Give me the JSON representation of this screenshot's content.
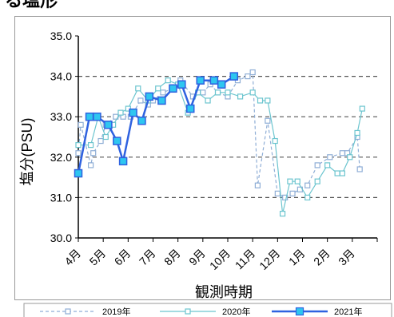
{
  "page_title_fragment": "る塩形",
  "chart_data": {
    "type": "line",
    "title": "",
    "xlabel": "観測時期",
    "ylabel": "塩分(PSU)",
    "ylim": [
      30.0,
      35.0
    ],
    "yticks": [
      "30.0",
      "31.0",
      "32.0",
      "33.0",
      "34.0",
      "35.0"
    ],
    "ytick_values": [
      30.0,
      31.0,
      32.0,
      33.0,
      34.0,
      35.0
    ],
    "dashed_gridlines": [
      31.0,
      32.0,
      33.0,
      34.0
    ],
    "xlim": [
      4,
      16
    ],
    "categories": [
      "4月",
      "5月",
      "6月",
      "7月",
      "8月",
      "9月",
      "10月",
      "11月",
      "12月",
      "1月",
      "2月",
      "3月"
    ],
    "category_positions": [
      4,
      5,
      6,
      7,
      8,
      9,
      10,
      11,
      12,
      13,
      14,
      15
    ],
    "legend_position": "bottom",
    "series": [
      {
        "name": "2019年",
        "color": "#8faed6",
        "style": "dashed",
        "marker": "square-hollow",
        "x": [
          4.0,
          4.1,
          4.5,
          4.6,
          4.9,
          5.1,
          5.5,
          5.8,
          6.1,
          6.5,
          6.8,
          7.0,
          7.4,
          7.8,
          8.1,
          8.6,
          9.0,
          9.3,
          9.6,
          10.0,
          10.4,
          10.8,
          11.0,
          11.2,
          11.6,
          12.0,
          12.3,
          12.6,
          12.9,
          13.2,
          13.6,
          14.1,
          14.6,
          14.8,
          15.2,
          15.3
        ],
        "y": [
          32.1,
          32.8,
          31.8,
          32.1,
          32.4,
          32.8,
          33.0,
          33.0,
          33.0,
          33.4,
          33.3,
          33.4,
          33.6,
          33.7,
          33.9,
          33.5,
          33.6,
          33.8,
          33.6,
          33.5,
          33.9,
          34.0,
          34.1,
          31.3,
          32.9,
          31.1,
          31.0,
          31.1,
          31.2,
          31.3,
          31.8,
          32.0,
          32.1,
          32.1,
          32.5,
          31.7
        ]
      },
      {
        "name": "2020年",
        "color": "#6cc5cf",
        "style": "solid",
        "marker": "square-hollow",
        "x": [
          4.0,
          4.5,
          4.8,
          5.1,
          5.4,
          5.7,
          6.0,
          6.4,
          6.8,
          7.2,
          7.6,
          8.0,
          8.4,
          8.8,
          9.2,
          9.6,
          10.0,
          10.5,
          11.0,
          11.3,
          11.6,
          11.9,
          12.2,
          12.5,
          12.8,
          13.2,
          13.6,
          14.0,
          14.4,
          14.6,
          14.9,
          15.2,
          15.4
        ],
        "y": [
          32.3,
          32.3,
          33.0,
          32.5,
          32.8,
          33.1,
          33.2,
          33.7,
          33.4,
          33.7,
          33.9,
          33.8,
          33.1,
          33.6,
          33.4,
          33.6,
          33.6,
          33.5,
          33.6,
          33.4,
          33.4,
          32.4,
          30.6,
          31.4,
          31.4,
          31.0,
          31.4,
          31.8,
          31.6,
          31.6,
          32.0,
          32.6,
          33.2
        ]
      },
      {
        "name": "2021年",
        "color": "#2f62e0",
        "style": "solid",
        "marker": "square-filled",
        "marker_fill": "#2ec6f0",
        "x": [
          4.0,
          4.45,
          4.75,
          5.2,
          5.55,
          5.8,
          6.2,
          6.55,
          6.85,
          7.35,
          7.8,
          8.15,
          8.5,
          8.9,
          9.45,
          9.75,
          10.25
        ],
        "y": [
          31.6,
          33.0,
          33.0,
          32.8,
          32.4,
          31.9,
          33.1,
          32.9,
          33.5,
          33.4,
          33.7,
          33.8,
          33.2,
          33.9,
          33.9,
          33.8,
          34.0
        ]
      }
    ]
  }
}
